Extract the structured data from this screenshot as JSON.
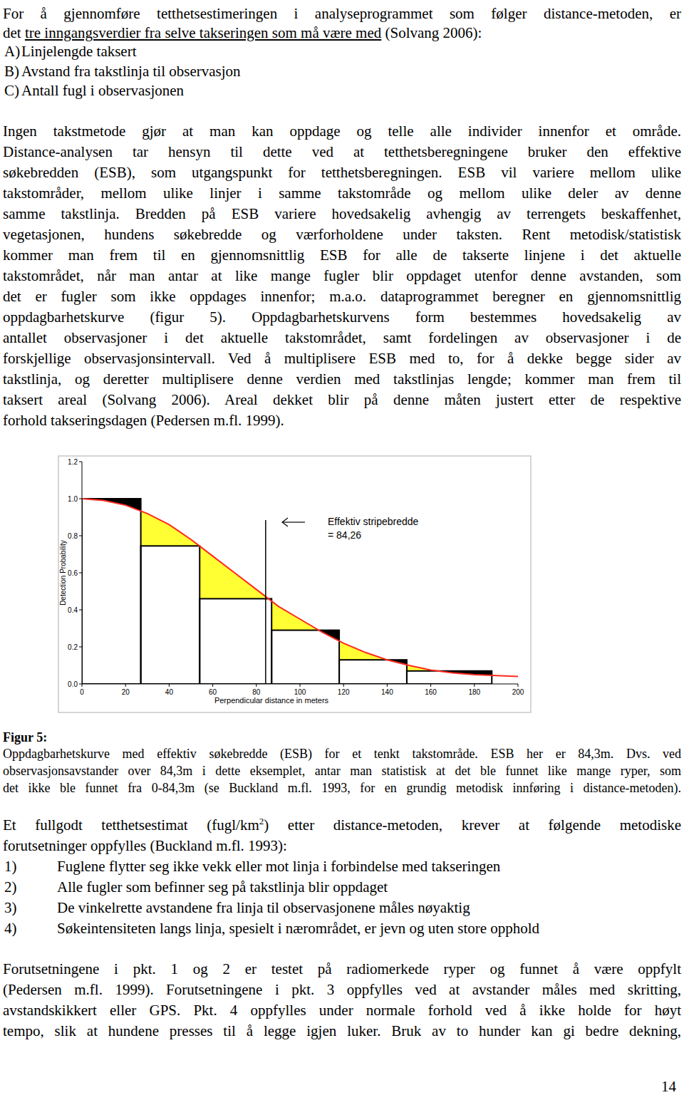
{
  "page": {
    "intro": [
      [
        {
          "text": "For å gjennomføre tetthetsestimeringen i analyseprogrammet som følger distance-metoden, er"
        }
      ],
      [
        {
          "text": "det "
        },
        {
          "text": "tre inngangsverdier fra selve takseringen som må være med",
          "style": "underline"
        },
        {
          "text": " (Solvang 2006):"
        }
      ]
    ],
    "inputs": [
      {
        "label": "A)",
        "text": "Linjelengde taksert"
      },
      {
        "label": "B)",
        "text": "Avstand fra takstlinja til observasjon"
      },
      {
        "label": "C)",
        "text": "Antall fugl i observasjonen"
      }
    ],
    "paragraph_1": [
      [
        {
          "text": "Ingen takstmetode gjør at man kan oppdage og telle alle individer innenfor et område."
        }
      ],
      [
        {
          "text": "Distance-analysen tar hensyn til dette ved at tetthetsberegningene bruker den effektive"
        }
      ],
      [
        {
          "text": "søkebredden (ESB), som utgangspunkt for tetthetsberegningen. ESB vil variere mellom ulike"
        }
      ],
      [
        {
          "text": "takstområder, mellom ulike linjer i samme takstområde og mellom ulike deler av denne"
        }
      ],
      [
        {
          "text": "samme takstlinja. Bredden på ESB variere hovedsakelig avhengig av terrengets beskaffenhet,"
        }
      ],
      [
        {
          "text": "vegetasjonen, hundens søkebredde og værforholdene under taksten. Rent metodisk/statistisk"
        }
      ],
      [
        {
          "text": "kommer man frem til en gjennomsnittlig ESB for alle de takserte linjene i det aktuelle"
        }
      ],
      [
        {
          "text": "takstområdet, når man antar at like mange fugler blir oppdaget utenfor denne avstanden, som"
        }
      ],
      [
        {
          "text": "det er fugler som ikke oppdages innenfor; m.a.o. dataprogrammet beregner en gjennomsnittlig"
        }
      ],
      [
        {
          "text": "oppdagbarhetskurve (figur 5). Oppdagbarhetskurvens form bestemmes hovedsakelig av"
        }
      ],
      [
        {
          "text": "antallet observasjoner i det aktuelle takstområdet, samt fordelingen av observasjoner i de"
        }
      ],
      [
        {
          "text": "forskjellige observasjonsintervall. Ved å multiplisere ESB med to, for å dekke begge sider av"
        }
      ],
      [
        {
          "text": "takstlinja, og deretter multiplisere denne verdien med takstlinjas lengde; kommer man frem til"
        }
      ],
      [
        {
          "text": "taksert areal (Solvang 2006). Areal dekket blir på denne måten justert etter de respektive"
        }
      ],
      [
        {
          "text": "forhold takseringsdagen (Pedersen m.fl. 1999)."
        }
      ]
    ],
    "figure_caption": {
      "label": "Figur 5:",
      "lines": [
        [
          {
            "text": "Oppdagbarhetskurve med effektiv søkebredde (ESB) for et tenkt takstområde. ESB her er 84,3m. Dvs. ved"
          }
        ],
        [
          {
            "text": "observasjonsavstander over 84,3m i dette eksemplet, antar man statistisk at det ble funnet like mange ryper, som"
          }
        ],
        [
          {
            "text": "det ikke ble funnet fra 0-84,3m (se Buckland m.fl. 1993, for en grundig metodisk innføring i distance-metoden)."
          }
        ]
      ]
    },
    "paragraph_2": [
      [
        {
          "text": "Et fullgodt tetthetsestimat (fugl/km"
        },
        {
          "text": "2",
          "style": "superscript"
        },
        {
          "text": ") etter distance-metoden, krever at følgende metodiske"
        }
      ],
      [
        {
          "text": "forutsetninger oppfylles (Buckland m.fl. 1993):"
        }
      ]
    ],
    "assumptions": [
      {
        "label": "1)",
        "text": "Fuglene flytter seg ikke vekk eller mot linja i forbindelse med takseringen"
      },
      {
        "label": "2)",
        "text": "Alle fugler som befinner seg på takstlinja blir oppdaget"
      },
      {
        "label": "3)",
        "text": "De vinkelrette avstandene fra linja til observasjonene måles nøyaktig"
      },
      {
        "label": "4)",
        "text": "Søkeintensiteten langs linja, spesielt i nærområdet, er jevn og uten store opphold"
      }
    ],
    "paragraph_3": [
      [
        {
          "text": "Forutsetningene i pkt. 1 og 2 er testet på radiomerkede ryper og funnet å være oppfylt"
        }
      ],
      [
        {
          "text": "(Pedersen m.fl. 1999). Forutsetningene i pkt. 3 oppfylles ved at avstander måles med skritting,"
        }
      ],
      [
        {
          "text": "avstandskikkert eller GPS. Pkt. 4 oppfylles under normale forhold ved å ikke holde for høyt"
        }
      ],
      [
        {
          "text": "tempo, slik at hundene presses til å legge igjen luker. Bruk av to hunder kan gi bedre dekning,"
        }
      ]
    ],
    "page_number": "14"
  },
  "chart_data": {
    "type": "histogram",
    "x_label": "Perpendicular distance in meters",
    "y_label": "Detection Probability",
    "bins": [
      0,
      27,
      54,
      87,
      118,
      149,
      188
    ],
    "values": [
      1.0,
      0.745,
      0.46,
      0.29,
      0.13,
      0.07
    ],
    "color": "#000000",
    "fit": {
      "x": [
        0,
        10,
        20,
        30,
        40,
        50,
        60,
        70,
        80,
        90,
        100,
        110,
        120,
        130,
        140,
        150,
        160,
        170,
        180,
        190,
        200
      ],
      "values": [
        1.0,
        0.99,
        0.965,
        0.92,
        0.86,
        0.78,
        0.69,
        0.6,
        0.51,
        0.42,
        0.35,
        0.28,
        0.22,
        0.17,
        0.13,
        0.1,
        0.075,
        0.06,
        0.05,
        0.045,
        0.04
      ],
      "color": "#ff2a1f"
    },
    "annotation": {
      "text": [
        "Effektiv stripebredde",
        "= 84,26"
      ],
      "x": 84.26
    },
    "xlim": [
      0,
      200
    ],
    "ylim": [
      0,
      1.2
    ],
    "xticks": [
      0,
      20,
      40,
      60,
      80,
      100,
      120,
      140,
      160,
      180,
      200
    ],
    "yticks": [
      {
        "value": 0,
        "label": "0.0"
      },
      {
        "value": 0.2,
        "label": "0.2"
      },
      {
        "value": 0.4,
        "label": "0.4"
      },
      {
        "value": 0.6,
        "label": "0.6"
      },
      {
        "value": 0.8,
        "label": "0.8"
      },
      {
        "value": 1.0,
        "label": "1.0"
      },
      {
        "value": 1.2,
        "label": "1.2"
      }
    ]
  }
}
